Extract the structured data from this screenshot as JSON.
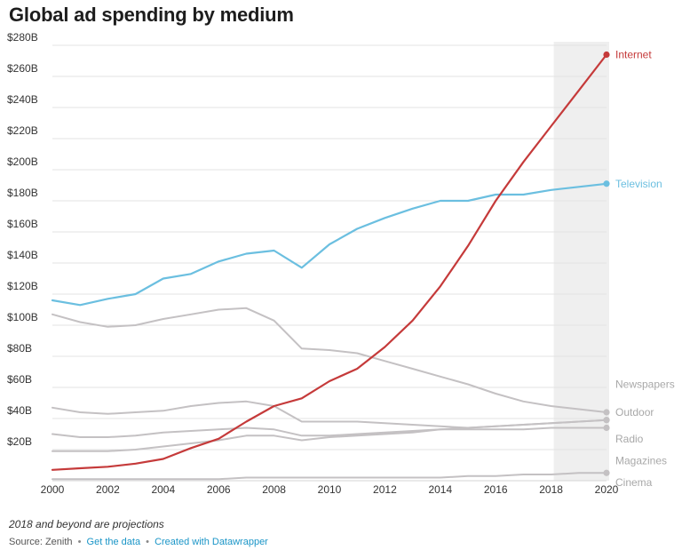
{
  "page": {
    "title": "Global ad spending by medium",
    "note": "2018 and beyond are projections",
    "source_prefix": "Source: Zenith",
    "separator": "•",
    "get_data_link": "Get the data",
    "created_link": "Created with Datawrapper"
  },
  "chart_data": {
    "type": "line",
    "title": "Global ad spending by medium",
    "xlabel": "",
    "ylabel": "",
    "x": [
      2000,
      2001,
      2002,
      2003,
      2004,
      2005,
      2006,
      2007,
      2008,
      2009,
      2010,
      2011,
      2012,
      2013,
      2014,
      2015,
      2016,
      2017,
      2018,
      2019,
      2020
    ],
    "xlim": [
      2000,
      2020
    ],
    "ylim": [
      0,
      280
    ],
    "y_ticks": [
      20,
      40,
      60,
      80,
      100,
      120,
      140,
      160,
      180,
      200,
      220,
      240,
      260,
      280
    ],
    "y_tick_labels": [
      "$20B",
      "$40B",
      "$60B",
      "$80B",
      "$100B",
      "$120B",
      "$140B",
      "$160B",
      "$180B",
      "$200B",
      "$220B",
      "$240B",
      "$260B",
      "$280B"
    ],
    "x_ticks": [
      2000,
      2002,
      2004,
      2006,
      2008,
      2010,
      2012,
      2014,
      2016,
      2018,
      2020
    ],
    "x_tick_labels": [
      "2000",
      "2002",
      "2004",
      "2006",
      "2008",
      "2010",
      "2012",
      "2014",
      "2016",
      "2018",
      "2020"
    ],
    "projection_band": [
      2018,
      2020
    ],
    "grid": true,
    "series": [
      {
        "name": "Newspapers",
        "color": "#c4c1c3",
        "label_y": 62,
        "values": [
          107,
          102,
          99,
          100,
          104,
          107,
          110,
          111,
          103,
          85,
          84,
          82,
          77,
          72,
          67,
          62,
          56,
          51,
          48,
          46,
          44
        ]
      },
      {
        "name": "Outdoor",
        "color": "#c4c1c3",
        "label_y": 44,
        "values": [
          47,
          44,
          43,
          44,
          45,
          48,
          50,
          51,
          48,
          38,
          38,
          38,
          37,
          36,
          35,
          34,
          35,
          36,
          37,
          38,
          39
        ]
      },
      {
        "name": "Radio",
        "color": "#c4c1c3",
        "label_y": 27,
        "values": [
          30,
          28,
          28,
          29,
          31,
          32,
          33,
          34,
          33,
          29,
          29,
          30,
          31,
          32,
          33,
          33,
          33,
          33,
          34,
          34,
          34
        ]
      },
      {
        "name": "Magazines",
        "color": "#c4c1c3",
        "label_y": 13,
        "values": [
          19,
          19,
          19,
          20,
          22,
          24,
          26,
          29,
          29,
          26,
          28,
          29,
          30,
          31,
          33,
          34,
          35,
          36,
          37,
          38,
          39
        ]
      },
      {
        "name": "Cinema",
        "color": "#c4c1c3",
        "label_y": -1,
        "values": [
          1,
          1,
          1,
          1,
          1,
          1,
          1,
          2,
          2,
          2,
          2,
          2,
          2,
          2,
          2,
          3,
          3,
          4,
          4,
          5,
          5
        ]
      },
      {
        "name": "Television",
        "color": "#6bbfe0",
        "label_y": 191,
        "values": [
          116,
          113,
          117,
          120,
          130,
          133,
          141,
          146,
          148,
          137,
          152,
          162,
          169,
          175,
          180,
          180,
          184,
          184,
          187,
          189,
          191
        ]
      },
      {
        "name": "Internet",
        "color": "#c53a3a",
        "label_y": 274,
        "values": [
          7,
          8,
          9,
          11,
          14,
          21,
          27,
          38,
          48,
          53,
          64,
          72,
          86,
          103,
          125,
          151,
          180,
          205,
          228,
          251,
          274
        ]
      }
    ]
  }
}
